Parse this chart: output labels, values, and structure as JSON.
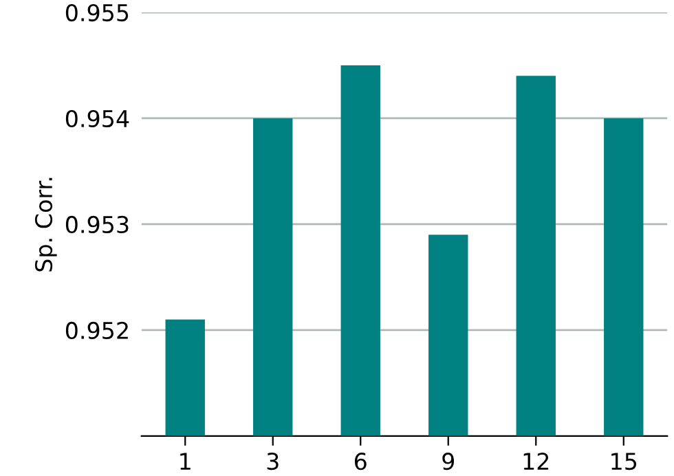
{
  "chart_data": {
    "type": "bar",
    "ylabel": "Sp. Corr.",
    "categories": [
      "1",
      "3",
      "6",
      "9",
      "12",
      "15"
    ],
    "values": [
      0.9521,
      0.954,
      0.9545,
      0.9529,
      0.9544,
      0.954
    ],
    "color": "#008080",
    "ylim": [
      0.951,
      0.955
    ],
    "yticks": [
      0.952,
      0.953,
      0.954,
      0.955
    ],
    "grid": "y"
  }
}
